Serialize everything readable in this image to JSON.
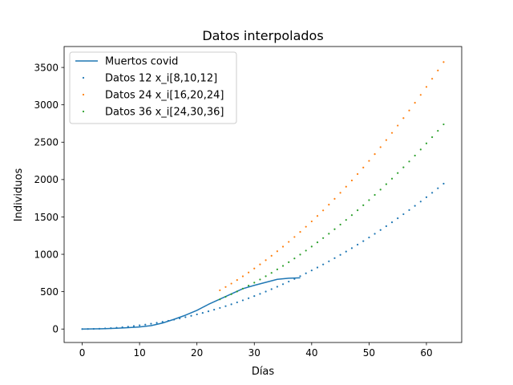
{
  "chart_data": {
    "type": "line",
    "title": "Datos interpolados",
    "xlabel": "Días",
    "ylabel": "Individuos",
    "xlim": [
      -3.15,
      66.15
    ],
    "ylim": [
      -180,
      3780
    ],
    "xticks": [
      0,
      10,
      20,
      30,
      40,
      50,
      60
    ],
    "yticks": [
      0,
      500,
      1000,
      1500,
      2000,
      2500,
      3000,
      3500
    ],
    "grid": false,
    "legend_position": "top-left",
    "series": [
      {
        "name": "Muertos covid",
        "style": "line",
        "color": "#1f77b4",
        "x": [
          0,
          2,
          4,
          6,
          8,
          10,
          12,
          14,
          16,
          18,
          20,
          22,
          24,
          26,
          28,
          30,
          32,
          34,
          36,
          38
        ],
        "y": [
          0,
          2,
          5,
          10,
          18,
          28,
          45,
          80,
          130,
          185,
          250,
          330,
          400,
          470,
          540,
          585,
          625,
          665,
          680,
          685
        ]
      },
      {
        "name": "Datos 12 x_i[8,10,12]",
        "style": "dots",
        "color": "#1f77b4",
        "x_start": 0,
        "x_end": 63,
        "x_step": 1,
        "coef": [
          0.49,
          0.0,
          0.0
        ]
      },
      {
        "name": "Datos 24 x_i[16,20,24]",
        "style": "dots",
        "color": "#ff7f0e",
        "x_start": 24,
        "x_end": 63,
        "x_step": 1,
        "coef": [
          0.9,
          0.0,
          0.0
        ]
      },
      {
        "name": "Datos 36 x_i[24,30,36]",
        "style": "dots",
        "color": "#2ca02c",
        "x_start": 24,
        "x_end": 63,
        "x_step": 1,
        "coef": [
          0.69,
          0.0,
          0.0
        ]
      }
    ]
  }
}
